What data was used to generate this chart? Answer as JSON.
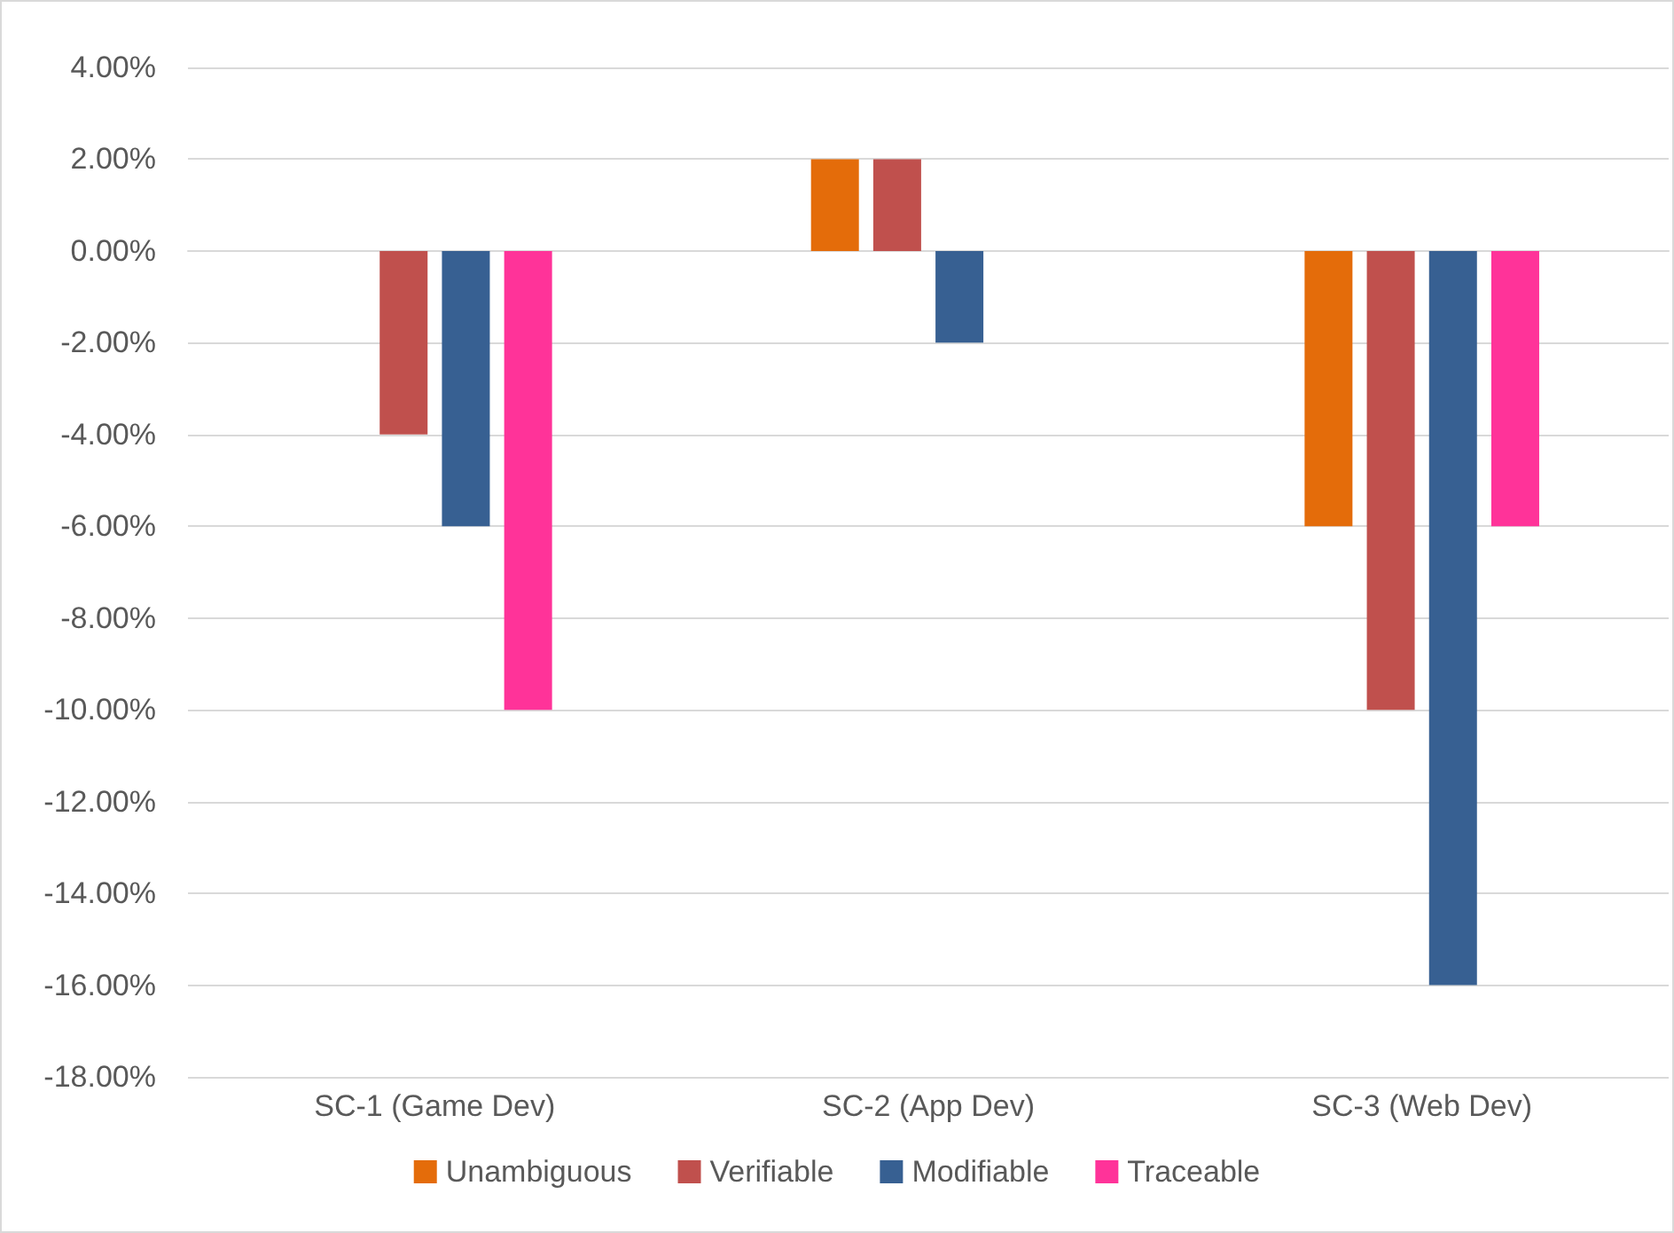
{
  "chart_data": {
    "type": "bar",
    "categories": [
      "SC-1 (Game Dev)",
      "SC-2 (App Dev)",
      "SC-3 (Web Dev)"
    ],
    "series": [
      {
        "name": "Unambiguous",
        "color": "#e46c0a",
        "values": [
          0,
          2,
          -6
        ]
      },
      {
        "name": "Verifiable",
        "color": "#c0504d",
        "values": [
          -4,
          2,
          -10
        ]
      },
      {
        "name": "Modifiable",
        "color": "#376092",
        "values": [
          -6,
          -2,
          -16
        ]
      },
      {
        "name": "Traceable",
        "color": "#ff3399",
        "values": [
          -10,
          0,
          -6
        ]
      }
    ],
    "ylim": [
      -18,
      4
    ],
    "yticks": [
      {
        "value": -18,
        "label": "-18.00%"
      },
      {
        "value": -16,
        "label": "-16.00%"
      },
      {
        "value": -14,
        "label": "-14.00%"
      },
      {
        "value": -12,
        "label": "-12.00%"
      },
      {
        "value": -10,
        "label": "-10.00%"
      },
      {
        "value": -8,
        "label": "-8.00%"
      },
      {
        "value": -6,
        "label": "-6.00%"
      },
      {
        "value": -4,
        "label": "-4.00%"
      },
      {
        "value": -2,
        "label": "-2.00%"
      },
      {
        "value": 0,
        "label": "0.00%"
      },
      {
        "value": 2,
        "label": "2.00%"
      },
      {
        "value": 4,
        "label": "4.00%"
      }
    ],
    "grid": "y",
    "legend": "bottom"
  }
}
